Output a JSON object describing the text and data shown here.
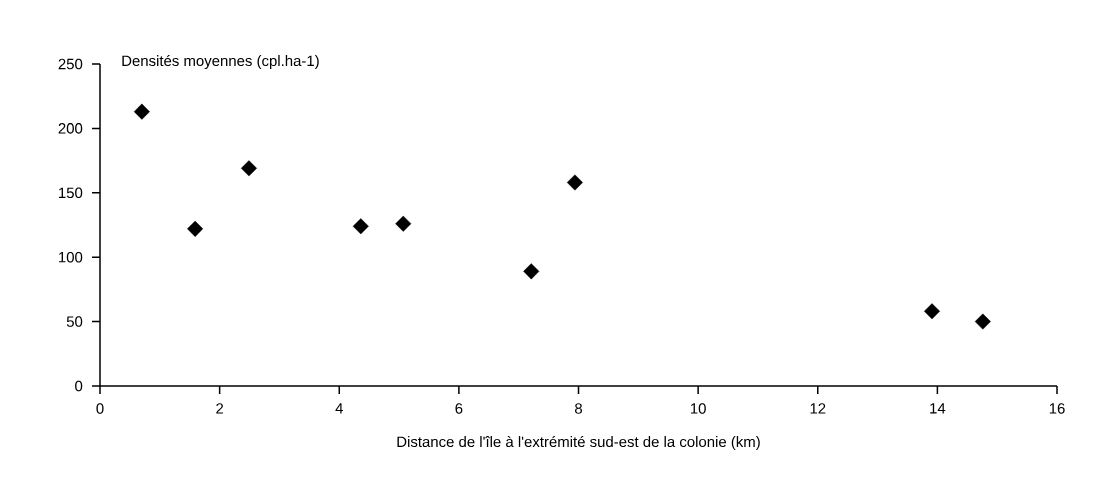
{
  "chart_data": {
    "type": "scatter",
    "xlabel": "Distance de l'île à l'extrémité sud-est de la colonie (km)",
    "ylabel": "Densités moyennes (cpl.ha-1)",
    "x": [
      0.7,
      1.59,
      2.49,
      4.36,
      5.07,
      7.21,
      7.94,
      13.91,
      14.76
    ],
    "values": [
      213,
      122,
      169,
      124,
      126,
      89,
      158,
      58,
      50
    ],
    "color": "#000000",
    "marker": "diamond",
    "xlim": [
      0,
      16
    ],
    "ylim": [
      0,
      250
    ],
    "xticks": [
      0,
      2,
      4,
      6,
      8,
      10,
      12,
      14,
      16
    ],
    "yticks": [
      0,
      50,
      100,
      150,
      200,
      250
    ]
  }
}
